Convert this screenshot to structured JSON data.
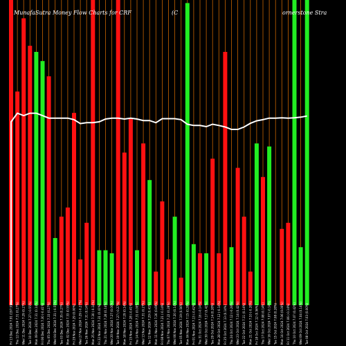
{
  "colors": {
    "background": "#000000",
    "up": "#22ee22",
    "down": "#ff1111",
    "grid": "#c86400",
    "line": "#ffffff"
  },
  "chart_data": {
    "type": "bar",
    "title": "MunafaSutra  Money Flow  Charts for CRF",
    "company": "(C",
    "company_tail": "ornerstone   Stra",
    "ylim": [
      0,
      100
    ],
    "grid": "vertical",
    "categories": [
      "Fri 13 Dec 2024",
      "Thu 12 Dec 2024",
      "Wed 11 Dec 2024",
      "Tue 10 Dec 2024",
      "Mon 09 Dec 2024",
      "Fri 06 Dec 2024",
      "Thu 05 Dec 2024",
      "Wed 04 Dec 2024",
      "Tue 03 Dec 2024",
      "Mon 02 Dec 2024",
      "Fri 29 Nov 2024",
      "Wed 27 Nov 2024",
      "Tue 26 Nov 2024",
      "Mon 25 Nov 2024",
      "Fri 22 Nov 2024",
      "Thu 21 Nov 2024",
      "Wed 20 Nov 2024",
      "Tue 19 Nov 2024",
      "Mon 18 Nov 2024",
      "Fri 15 Nov 2024",
      "Thu 14 Nov 2024",
      "Wed 13 Nov 2024",
      "Tue 12 Nov 2024",
      "Mon 11 Nov 2024",
      "Fri 08 Nov 2024",
      "Thu 07 Nov 2024",
      "Wed 06 Nov 2024",
      "Tue 05 Nov 2024",
      "Mon 04 Nov 2024",
      "Fri 01 Nov 2024",
      "Thu 31 Oct 2024",
      "Wed 30 Oct 2024",
      "Tue 29 Oct 2024",
      "Mon 28 Oct 2024",
      "Fri 25 Oct 2024",
      "Thu 24 Oct 2024",
      "Wed 23 Oct 2024",
      "Tue 22 Oct 2024",
      "Mon 21 Oct 2024",
      "Fri 18 Oct 2024",
      "Thu 17 Oct 2024",
      "Wed 16 Oct 2024",
      "Tue 15 Oct 2024",
      "Mon 14 Oct 2024",
      "Fri 11 Oct 2024",
      "Thu 10 Oct 2024",
      "Wed 09 Oct 2024",
      "Tue 08 Oct 2024"
    ],
    "tick_labels": [
      "7.91 (197.91%)",
      "7.31 (0.27%)",
      "7.29 (0.27%)",
      "7.27 (-0.55%)",
      "7.31 (0.14%)",
      "7.30 (-0.41%)",
      "7.33 (0.27%)",
      "7.31 (-0.55%)",
      "7.35 (0.27%)",
      "7.33 (0.55%)",
      "7.29 (0.00%)",
      "7.29 (-0.27%)",
      "7.31 (0.14%)",
      "7.30 (-0.14%)",
      "7.31 (0.41%)",
      "7.28 (0.14%)",
      "7.27 (0.00%)",
      "7.27 (-0.27%)",
      "7.29 (0.14%)",
      "7.28 (-0.41%)",
      "7.31 (0.00%)",
      "7.31 (0.27%)",
      "7.29 (0.41%)",
      "7.26 (0.69%)",
      "7.21 (-0.14%)",
      "7.22 (0.28%)",
      "7.20 (0.14%)",
      "7.19 (0.56%)",
      "7.15 (0.28%)",
      "7.13 (-0.42%)",
      "7.16 (-0.14%)",
      "7.17 (0.42%)",
      "7.14 (0.28%)",
      "7.12 (-0.14%)",
      "7.13 (0.14%)",
      "7.12 (-0.28%)",
      "7.14 (0.42%)",
      "7.11 (0.14%)",
      "7.10 (-0.28%)",
      "7.12 (0.56%)",
      "7.08 (0.14%)",
      "7.07 (-0.14%)",
      "7.08 (0.28%)",
      "7.06 (0.00%)",
      "7.06 (-0.14%)",
      "7.07 (0.42%)",
      "7.04 (0.14%)",
      "7.03 (0.00%)"
    ],
    "series": [
      {
        "direction": [
          "down",
          "down",
          "down",
          "down",
          "up",
          "up",
          "down",
          "up",
          "down",
          "down",
          "down",
          "down",
          "down",
          "down",
          "up",
          "up",
          "up",
          "down",
          "down",
          "down",
          "up",
          "down",
          "up",
          "down",
          "down",
          "down",
          "up",
          "down",
          "up",
          "up",
          "down",
          "up",
          "down",
          "down",
          "down",
          "up",
          "down",
          "down",
          "down",
          "up",
          "down",
          "up",
          "up",
          "down",
          "down",
          "up",
          "up",
          "up"
        ],
        "values": [
          100,
          70,
          94,
          85,
          83,
          80,
          75,
          22,
          29,
          32,
          63,
          15,
          27,
          100,
          18,
          18,
          17,
          100,
          50,
          61,
          18,
          53,
          41,
          11,
          34,
          15,
          29,
          9,
          99,
          20,
          17,
          17,
          48,
          17,
          83,
          19,
          45,
          29,
          11,
          53,
          42,
          52,
          0,
          25,
          27,
          100,
          19,
          100
        ]
      },
      {
        "values": [
          60.1,
          62.9,
          62.1,
          62.9,
          62.9,
          62.1,
          61.3,
          61.3,
          61.3,
          61.3,
          60.8,
          59.5,
          59.8,
          59.8,
          60.1,
          61.0,
          61.3,
          61.3,
          61.0,
          61.3,
          61.0,
          60.5,
          60.5,
          59.8,
          61.1,
          61.1,
          61.1,
          60.8,
          59.3,
          58.9,
          58.9,
          58.5,
          59.3,
          58.9,
          58.4,
          57.6,
          57.6,
          58.4,
          59.6,
          60.4,
          60.8,
          61.3,
          61.3,
          61.4,
          61.3,
          61.4,
          61.6,
          62.0
        ]
      }
    ]
  }
}
